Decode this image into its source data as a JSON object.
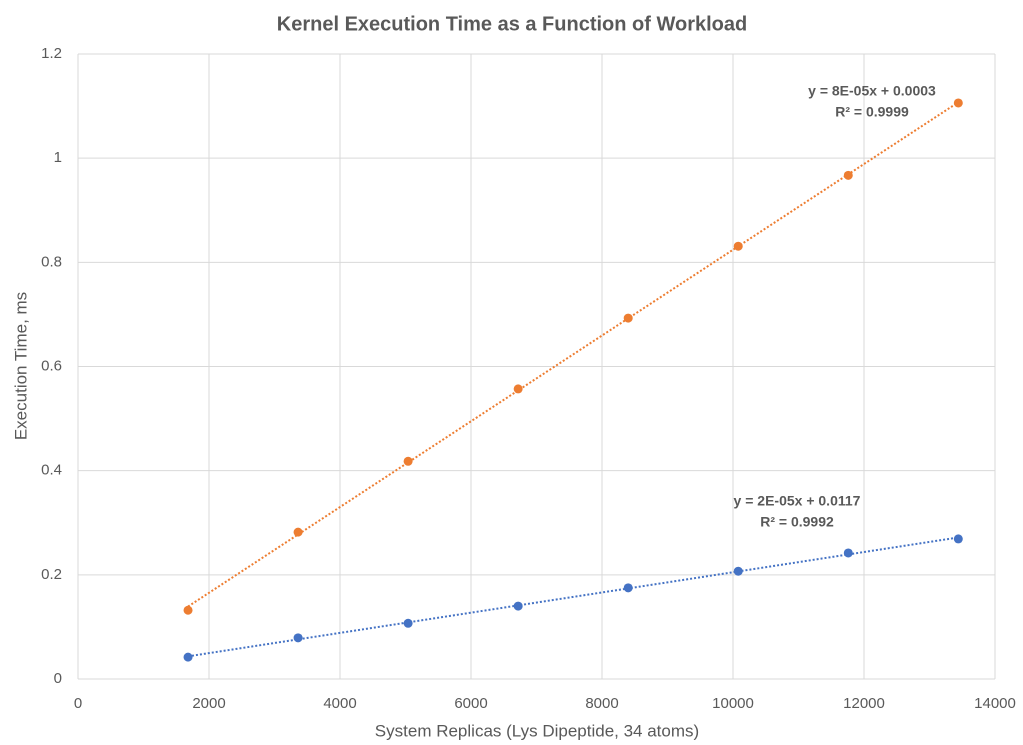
{
  "chart_data": {
    "type": "scatter",
    "title": "Kernel Execution Time as a Function of Workload",
    "x_label": "System Replicas (Lys Dipeptide, 34 atoms)",
    "y_label": "Execution Time, ms",
    "x": [
      1680,
      3360,
      5040,
      6720,
      8400,
      10080,
      11760,
      13440
    ],
    "series": [
      {
        "color": "#ed7d31",
        "values": [
          0.132,
          0.282,
          0.418,
          0.557,
          0.693,
          0.831,
          0.967,
          1.106
        ],
        "trendline": true,
        "annotation": [
          "y = 8E-05x + 0.0003",
          "R² = 0.9999"
        ]
      },
      {
        "color": "#4472c4",
        "values": [
          0.042,
          0.079,
          0.107,
          0.14,
          0.175,
          0.207,
          0.242,
          0.269
        ],
        "trendline": true,
        "annotation": [
          "y = 2E-05x + 0.0117",
          "R² = 0.9992"
        ]
      }
    ],
    "xlim": [
      0,
      14000
    ],
    "xticks": [
      0,
      2000,
      4000,
      6000,
      8000,
      10000,
      12000,
      14000
    ],
    "ylim": [
      0,
      1.2
    ],
    "yticks": [
      0,
      0.2,
      0.4,
      0.6,
      0.8,
      1,
      1.2
    ],
    "grid": true
  }
}
